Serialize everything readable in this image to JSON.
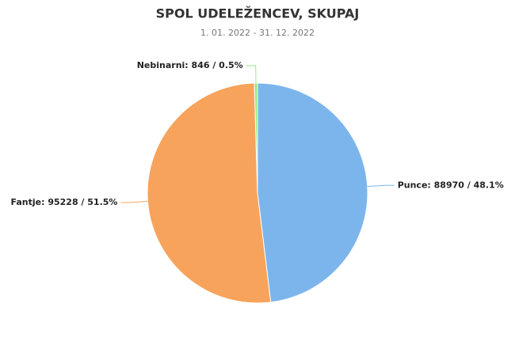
{
  "chart_data": {
    "type": "pie",
    "title": "SPOL UDELEŽENCEV, SKUPAJ",
    "subtitle": "1. 01. 2022 - 31. 12. 2022",
    "values": [
      88970,
      95228,
      846
    ],
    "value_labels": [
      "Punce: 88970 / 48.1%",
      "Fantje: 95228 / 51.5%",
      "Nebinarni: 846 / 0.5%"
    ],
    "colors": [
      "#7cb5ec",
      "#f7a35c",
      "#90ed7d"
    ]
  }
}
